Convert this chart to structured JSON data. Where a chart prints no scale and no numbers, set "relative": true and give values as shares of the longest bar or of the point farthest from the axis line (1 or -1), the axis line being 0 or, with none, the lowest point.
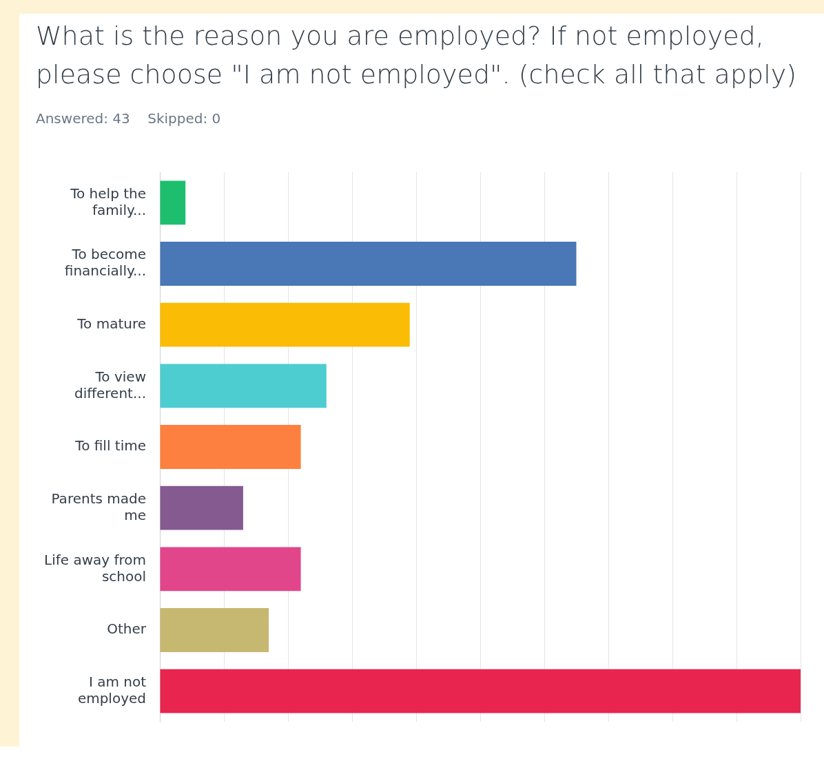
{
  "chart_data": {
    "type": "bar",
    "orientation": "horizontal",
    "relative": true,
    "title": "What is the reason you are employed? If not employed, please choose \"I am not employed\".  (check all that apply)",
    "subtitle": "Answered: 43    Skipped: 0",
    "categories": [
      "To help the family...",
      "To become financially...",
      "To mature",
      "To view different...",
      "To fill time",
      "Parents made me",
      "Life away from school",
      "Other",
      "I am not employed"
    ],
    "values": [
      0.04,
      0.65,
      0.39,
      0.26,
      0.22,
      0.13,
      0.22,
      0.17,
      1
    ],
    "colors": [
      "#1dbf6e",
      "#4a77b6",
      "#fbbc05",
      "#4ecdd1",
      "#fd8040",
      "#845a90",
      "#e2468a",
      "#c7b871",
      "#e8254f"
    ],
    "grid": "x",
    "legend": false
  }
}
